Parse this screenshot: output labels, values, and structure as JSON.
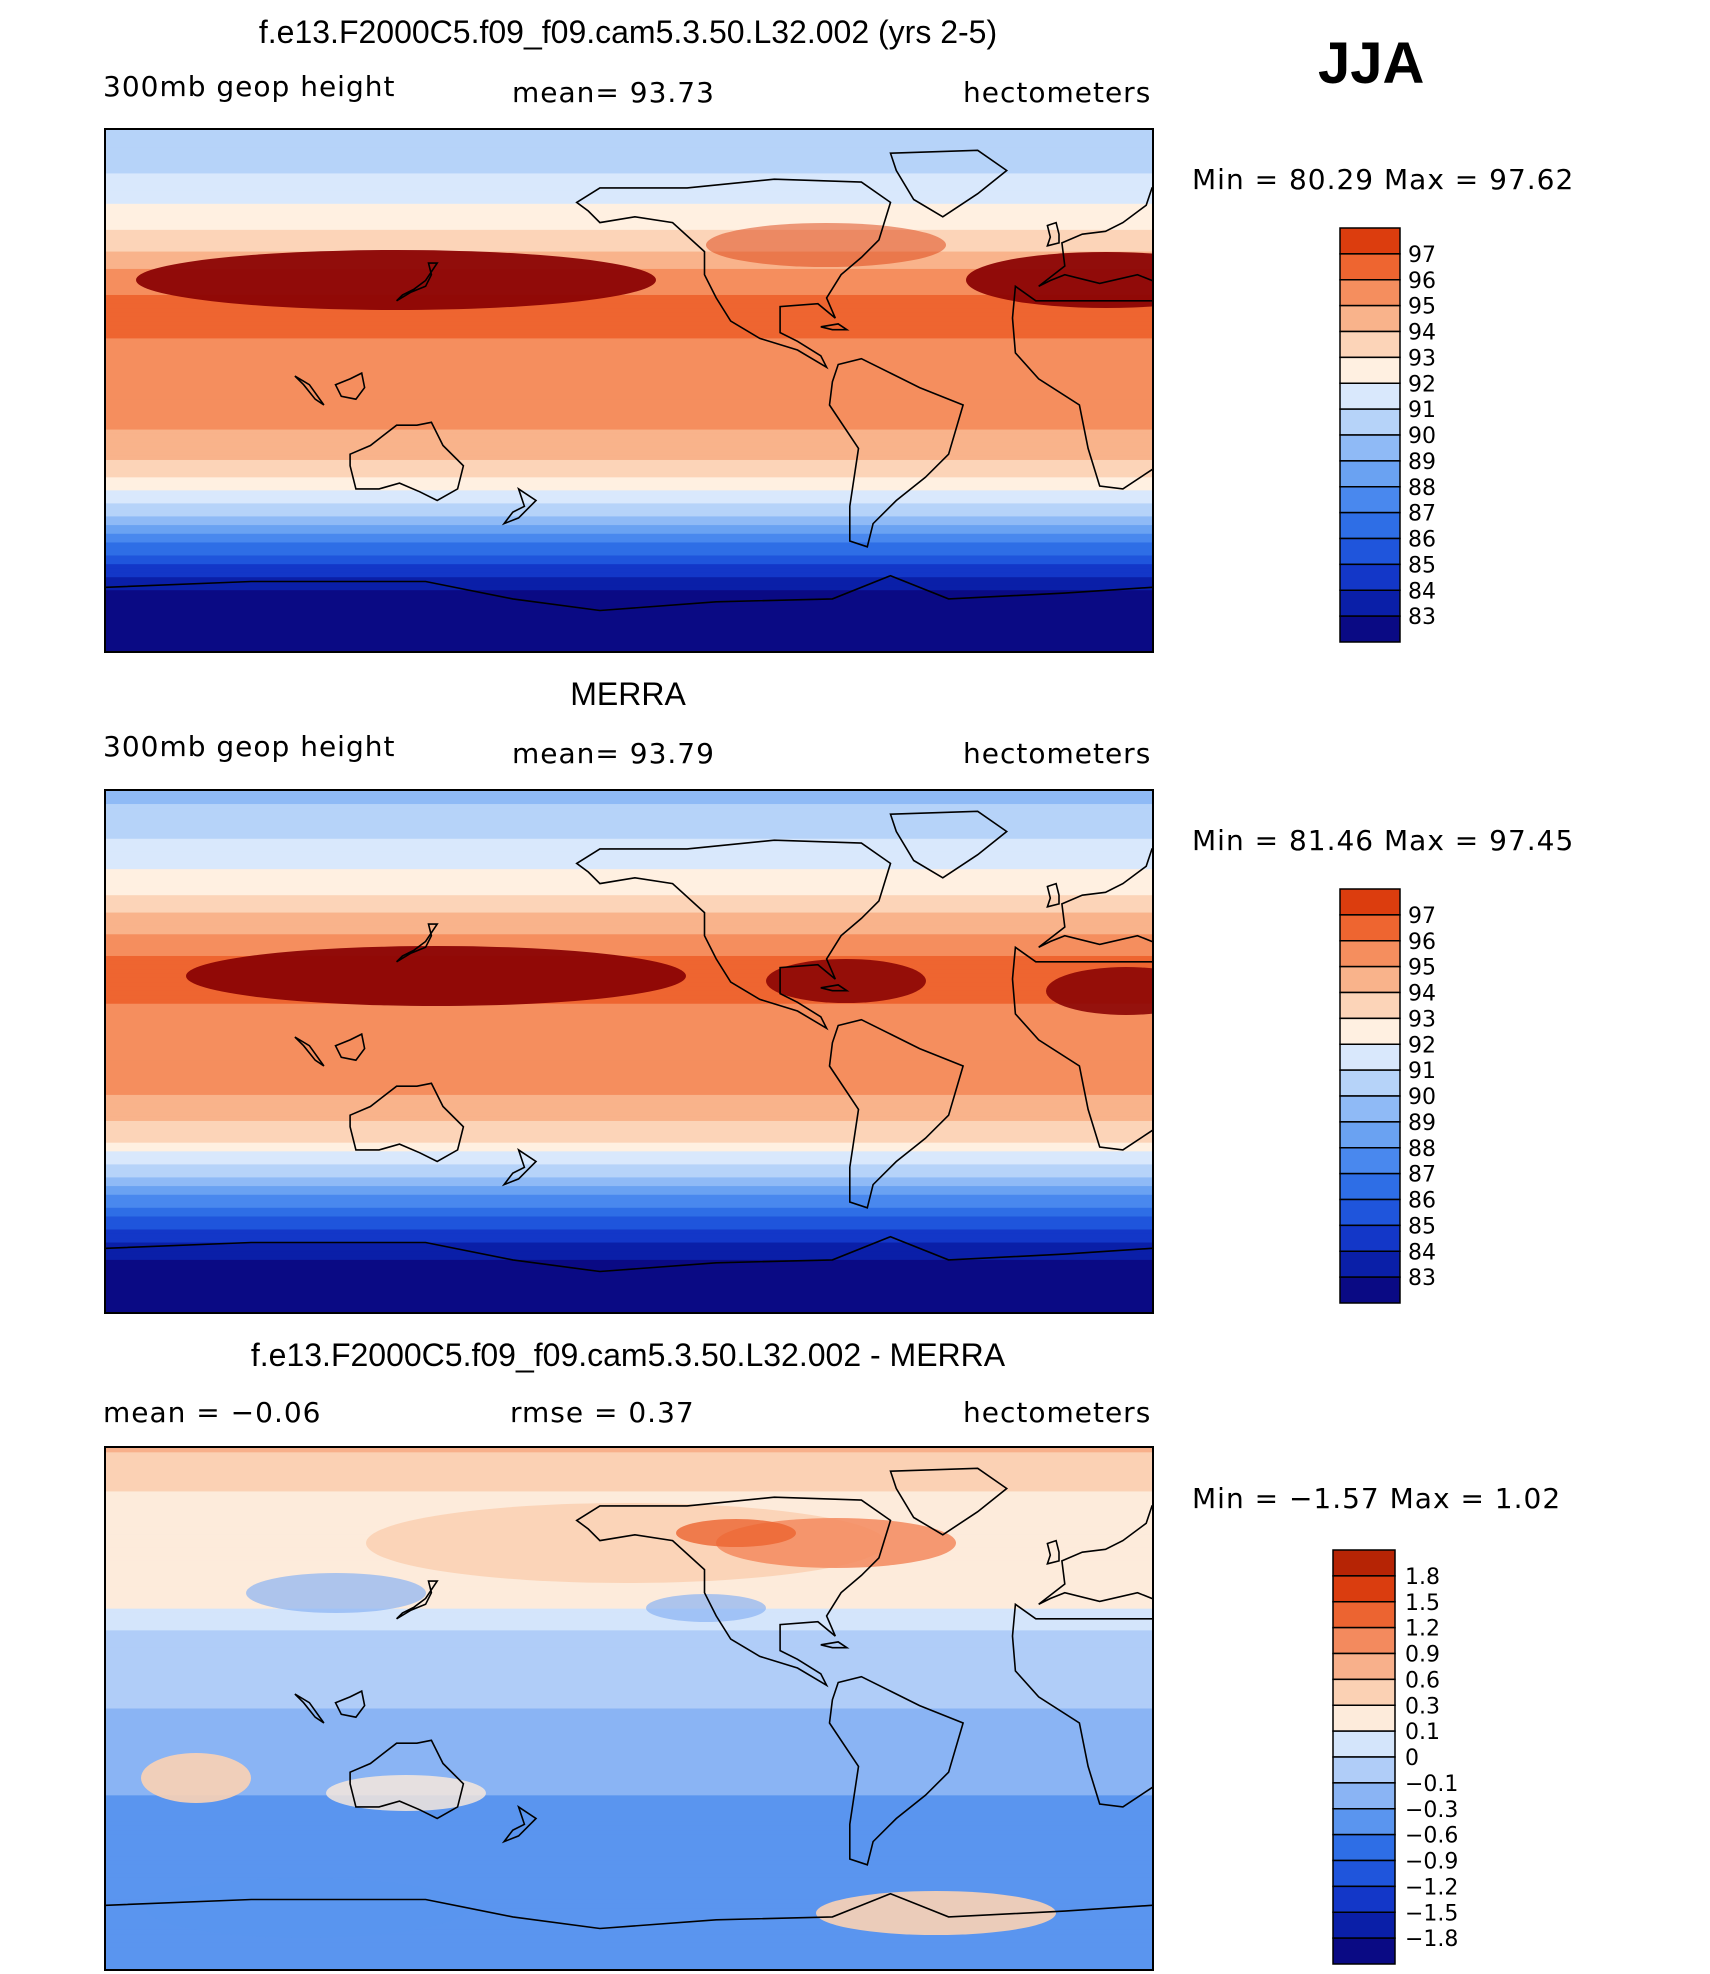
{
  "season": "JJA",
  "colors": {
    "abs_scale": [
      "#0a0a84",
      "#0a1fa8",
      "#1337c8",
      "#1f55dc",
      "#2e6ee6",
      "#4988ee",
      "#6aa2f2",
      "#8fbaf6",
      "#b6d3f9",
      "#d9e8fc",
      "#fff0e1",
      "#fcd4b8",
      "#f9b38b",
      "#f58e5e",
      "#ee6530",
      "#dc3d0e",
      "#b52305",
      "#8b0404"
    ],
    "diff_scale": [
      "#0a0a84",
      "#0a1fa8",
      "#1337c8",
      "#1f55dc",
      "#2e6ee6",
      "#5a95ef",
      "#8ab4f4",
      "#b0cdf8",
      "#d4e5fb",
      "#fdebdb",
      "#fbd1b4",
      "#f8b08b",
      "#f38a5e",
      "#ec6431",
      "#da3d0f",
      "#b62405",
      "#8b0404"
    ]
  },
  "panels": [
    {
      "title": "f.e13.F2000C5.f09_f09.cam5.3.50.L32.002 (yrs 2-5)",
      "left_label": "300mb  geop  height",
      "center_label": "mean=   93.73",
      "units": "hectometers",
      "minmax": "Min =    80.29  Max =    97.62"
    },
    {
      "title": "MERRA",
      "left_label": "300mb  geop  height",
      "center_label": "mean=   93.79",
      "units": "hectometers",
      "minmax": "Min =    81.46  Max =    97.45"
    },
    {
      "title": "f.e13.F2000C5.f09_f09.cam5.3.50.L32.002 - MERRA",
      "left_label": "mean  =    −0.06",
      "center_label": "rmse  =     0.37",
      "units": "hectometers",
      "minmax": "Min =   −1.57  Max =     1.02"
    }
  ],
  "chart_data": [
    {
      "type": "heatmap",
      "title": "f.e13.F2000C5.f09_f09.cam5.3.50.L32.002 (yrs 2-5)",
      "variable": "300mb geop height",
      "units": "hectometers",
      "mean": 93.73,
      "min": 80.29,
      "max": 97.62,
      "x_range": [
        30,
        390
      ],
      "y_range": [
        -90,
        90
      ],
      "contour_levels": [
        83,
        84,
        85,
        86,
        87,
        88,
        89,
        90,
        91,
        92,
        93,
        94,
        95,
        96,
        97
      ],
      "zonal_profile": {
        "lat": [
          90,
          80,
          70,
          60,
          50,
          40,
          30,
          20,
          10,
          0,
          -10,
          -20,
          -30,
          -40,
          -50,
          -60,
          -70,
          -80,
          -90
        ],
        "value": [
          90.3,
          90.7,
          91.4,
          92.4,
          93.6,
          95.2,
          96.4,
          96.1,
          95.6,
          95.4,
          95.2,
          94.6,
          93.1,
          90.8,
          87.9,
          85.0,
          82.9,
          81.6,
          81.0
        ]
      }
    },
    {
      "type": "heatmap",
      "title": "MERRA",
      "variable": "300mb geop height",
      "units": "hectometers",
      "mean": 93.79,
      "min": 81.46,
      "max": 97.45,
      "x_range": [
        30,
        390
      ],
      "y_range": [
        -90,
        90
      ],
      "contour_levels": [
        83,
        84,
        85,
        86,
        87,
        88,
        89,
        90,
        91,
        92,
        93,
        94,
        95,
        96,
        97
      ],
      "zonal_profile": {
        "lat": [
          90,
          80,
          70,
          60,
          50,
          40,
          30,
          20,
          10,
          0,
          -10,
          -20,
          -30,
          -40,
          -50,
          -60,
          -70,
          -80,
          -90
        ],
        "value": [
          89.6,
          90.4,
          91.3,
          92.3,
          93.6,
          95.1,
          96.3,
          96.2,
          95.7,
          95.5,
          95.3,
          94.7,
          93.2,
          90.9,
          88.0,
          85.2,
          83.2,
          82.2,
          81.7
        ]
      }
    },
    {
      "type": "heatmap",
      "title": "f.e13.F2000C5.f09_f09.cam5.3.50.L32.002 - MERRA",
      "units": "hectometers",
      "mean": -0.06,
      "rmse": 0.37,
      "min": -1.57,
      "max": 1.02,
      "x_range": [
        30,
        390
      ],
      "y_range": [
        -90,
        90
      ],
      "contour_levels": [
        -1.8,
        -1.5,
        -1.2,
        -0.9,
        -0.6,
        -0.3,
        -0.1,
        0,
        0.1,
        0.3,
        0.6,
        0.9,
        1.2,
        1.5,
        1.8
      ],
      "zonal_profile": {
        "lat": [
          90,
          80,
          70,
          60,
          50,
          40,
          30,
          20,
          10,
          0,
          -10,
          -20,
          -30,
          -40,
          -50,
          -60,
          -70,
          -80,
          -90
        ],
        "value": [
          0.65,
          0.4,
          0.2,
          0.15,
          0.1,
          0.15,
          0.05,
          -0.1,
          -0.1,
          -0.1,
          -0.15,
          -0.2,
          -0.3,
          -0.4,
          -0.45,
          -0.55,
          -0.5,
          -0.6,
          -0.55
        ]
      }
    }
  ],
  "colorbars": {
    "abs_labels": [
      "97",
      "96",
      "95",
      "94",
      "93",
      "92",
      "91",
      "90",
      "89",
      "88",
      "87",
      "86",
      "85",
      "84",
      "83"
    ],
    "diff_labels": [
      "1.8",
      "1.5",
      "1.2",
      "0.9",
      "0.6",
      "0.3",
      "0.1",
      "0",
      "−0.1",
      "−0.3",
      "−0.6",
      "−0.9",
      "−1.2",
      "−1.5",
      "−1.8"
    ]
  }
}
